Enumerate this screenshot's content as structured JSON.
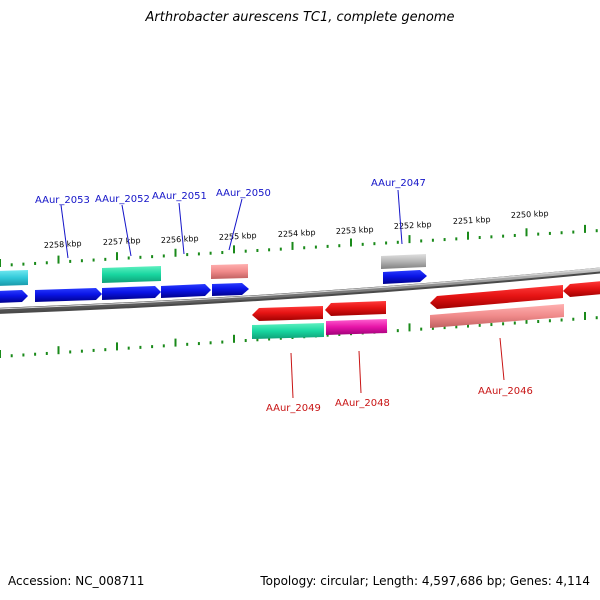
{
  "title": "Arthrobacter aurescens TC1, complete genome",
  "footer": {
    "accession_label": "Accession:",
    "accession": "NC_008711",
    "topology_label": "Topology:",
    "topology": "circular",
    "length_label": "Length:",
    "length": "4,597,686 bp",
    "genes_label": "Genes:",
    "genes": "4,114"
  },
  "colors": {
    "forward_cds": "#0a14e6",
    "reverse_cds": "#e61414",
    "forward_light": "#30c8d8",
    "reverse_light": "#f08a8a",
    "rna_green": "#18d6a0",
    "rna_magenta": "#e614a8",
    "pseudo_gray": "#b4b4b4",
    "backbone": "#808080",
    "tick_green": "#1a8a1a",
    "forward_label": "#1414c8",
    "reverse_label": "#c81414"
  },
  "scale_ticks": [
    "2258 kbp",
    "2257 kbp",
    "2256 kbp",
    "2255 kbp",
    "2254 kbp",
    "2253 kbp",
    "2252 kbp",
    "2251 kbp",
    "2250 kbp"
  ],
  "forward_labels": [
    "AAur_2053",
    "AAur_2052",
    "AAur_2051",
    "AAur_2050",
    "AAur_2047"
  ],
  "reverse_labels": [
    "AAur_2049",
    "AAur_2048",
    "AAur_2046"
  ]
}
